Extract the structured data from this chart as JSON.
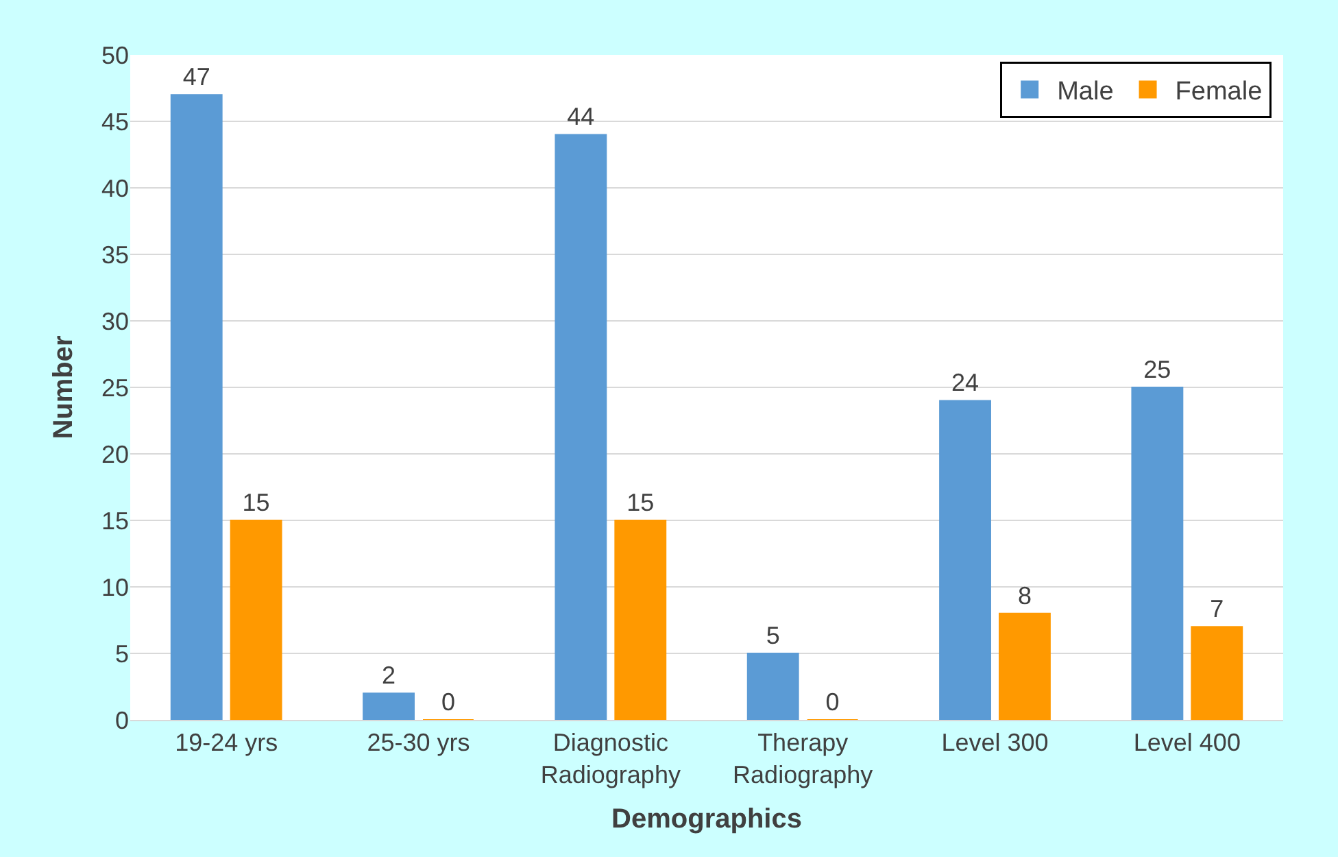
{
  "chart_data": {
    "type": "bar",
    "xlabel": "Demographics",
    "ylabel": "Number",
    "categories": [
      "19-24 yrs",
      "25-30 yrs",
      "Diagnostic Radiography",
      "Therapy Radiography",
      "Level 300",
      "Level 400"
    ],
    "series": [
      {
        "name": "Male",
        "color": "#5b9bd5",
        "values": [
          47,
          2,
          44,
          5,
          24,
          25
        ]
      },
      {
        "name": "Female",
        "color": "#ff9900",
        "values": [
          15,
          0,
          15,
          0,
          8,
          7
        ]
      }
    ],
    "ylim": [
      0,
      50
    ],
    "yticks": [
      0,
      5,
      10,
      15,
      20,
      25,
      30,
      35,
      40,
      45,
      50
    ],
    "grid": "y",
    "legend": "top right",
    "data_labels": true
  }
}
